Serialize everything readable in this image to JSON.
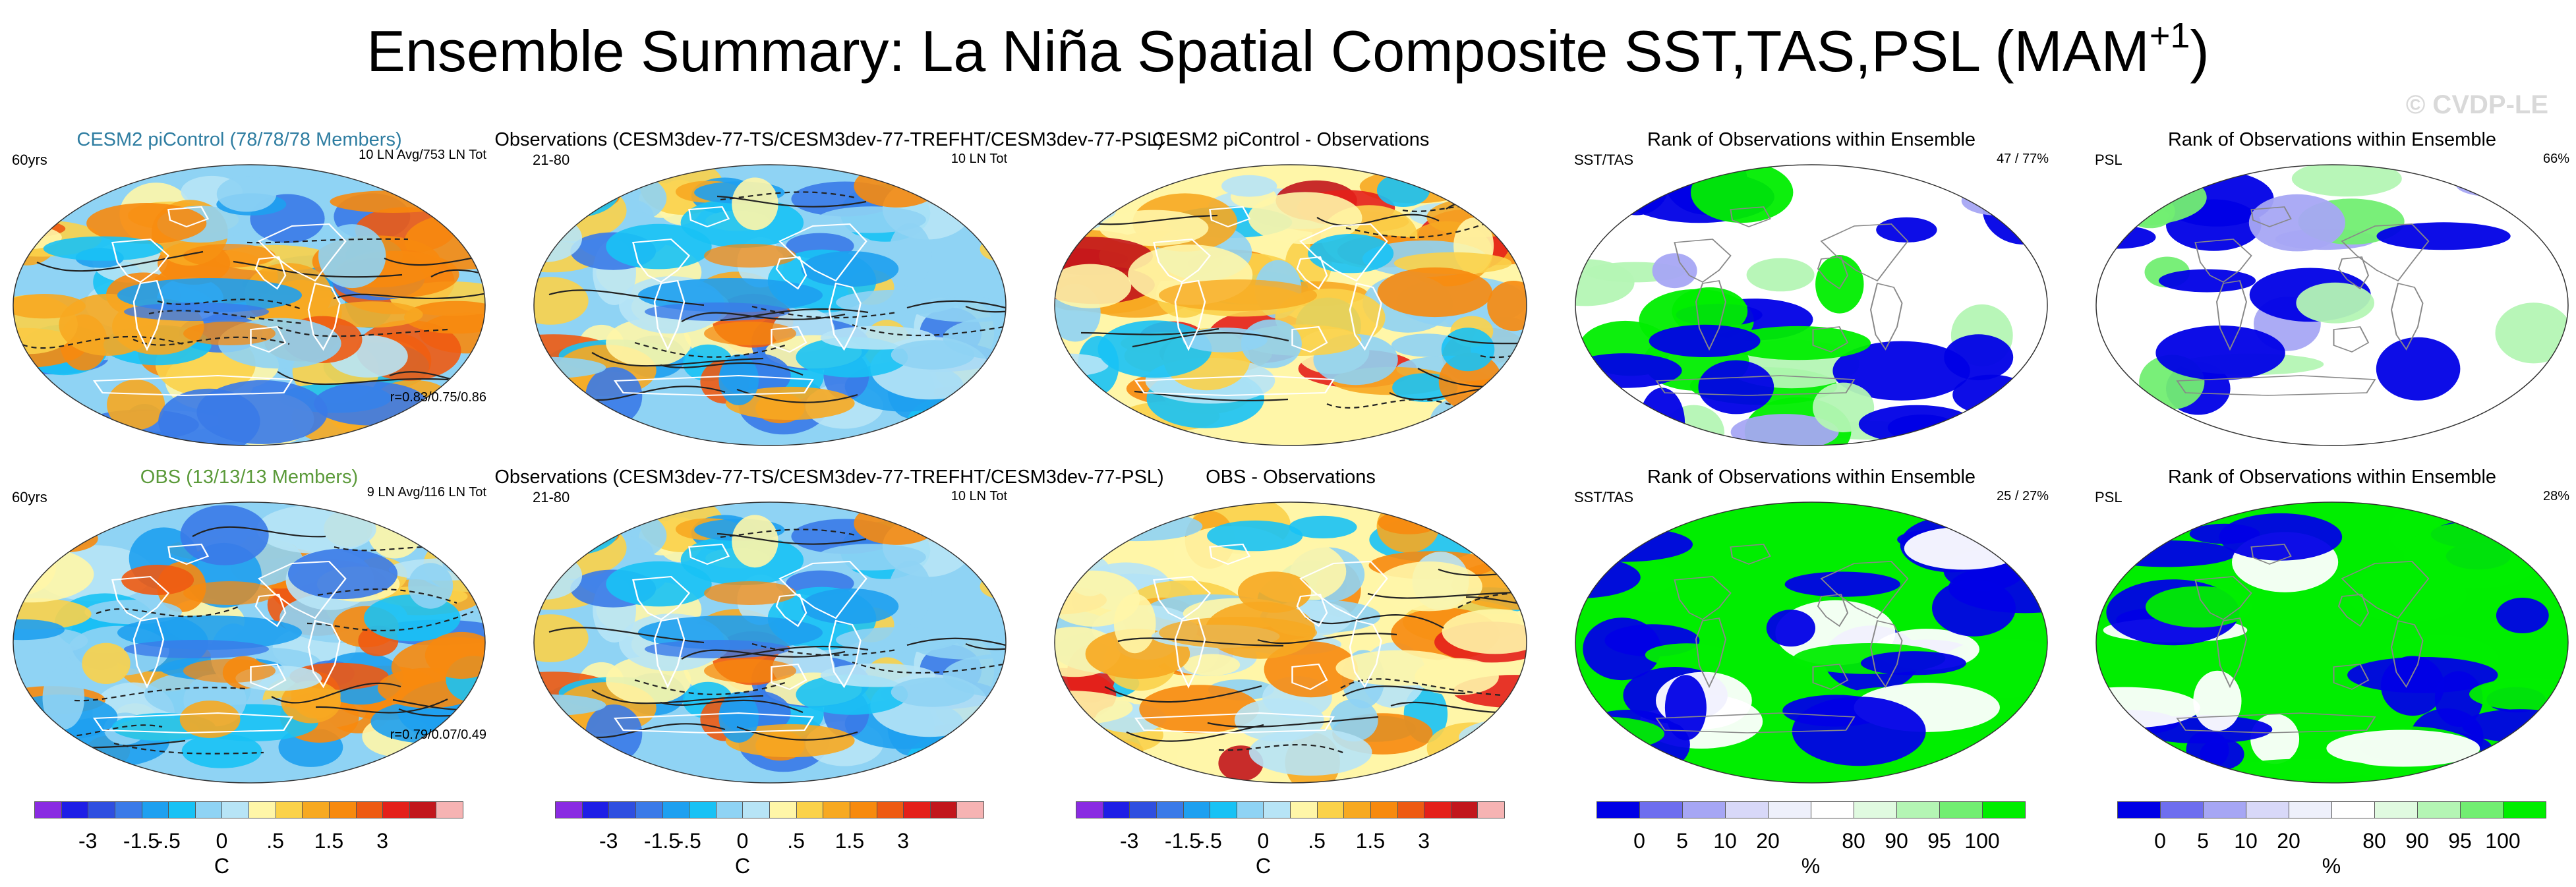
{
  "title": {
    "main": "Ensemble Summary: La Niña Spatial Composite SST,TAS,PSL (MAM",
    "sup": "+1",
    "close": ")"
  },
  "watermark": "© CVDP-LE",
  "colors": {
    "diverging": [
      "#8a2be2",
      "#1e1ee6",
      "#2f4fe0",
      "#3a7ae8",
      "#1ea0f0",
      "#18c2f5",
      "#8fd3f4",
      "#b7e4f6",
      "#fff6a8",
      "#fbd24a",
      "#f7a921",
      "#f78a0e",
      "#ee5a12",
      "#e4201a",
      "#c2161c",
      "#f6b3b3"
    ],
    "rank": [
      "#0000e6",
      "#6e6eef",
      "#a6a6f4",
      "#d8d8f8",
      "#eef0fb",
      "#ffffff",
      "#e0fae0",
      "#b4f5b4",
      "#72ee72",
      "#00ee00"
    ],
    "ocean_base": "#8fd3f4",
    "contour": "#222222"
  },
  "chart_data": {
    "type": "heatmap",
    "title": "Ensemble Summary: La Niña Spatial Composite SST,TAS,PSL (MAM+1)",
    "panels": [
      {
        "row": 0,
        "col": 0,
        "kind": "composite",
        "title": "CESM2 piControl (78/78/78 Members)",
        "title_color": "blue",
        "left_label": "60yrs",
        "right_label": "10 LN Avg/753 LN Tot",
        "bottom_label": "r=0.83/0.75/0.86",
        "seed": 11
      },
      {
        "row": 0,
        "col": 1,
        "kind": "composite",
        "title": "Observations (CESM3dev-77-TS/CESM3dev-77-TREFHT/CESM3dev-77-PSL)",
        "left_label": "21-80",
        "right_label": "10 LN Tot",
        "seed": 23
      },
      {
        "row": 0,
        "col": 2,
        "kind": "difference",
        "title": "CESM2 piControl - Observations",
        "seed": 37
      },
      {
        "row": 0,
        "col": 3,
        "kind": "rank",
        "title": "Rank of Observations within Ensemble",
        "left_label": "SST/TAS",
        "right_label": "47 /  77%",
        "seed": 41
      },
      {
        "row": 0,
        "col": 4,
        "kind": "rank_sparse",
        "title": "Rank of Observations within Ensemble",
        "left_label": "PSL",
        "right_label": "66%",
        "seed": 53
      },
      {
        "row": 1,
        "col": 0,
        "kind": "composite",
        "title": "OBS (13/13/13 Members)",
        "title_color": "green",
        "left_label": "60yrs",
        "right_label": "9 LN Avg/116 LN Tot",
        "bottom_label": "r=0.79/0.07/0.49",
        "seed": 61
      },
      {
        "row": 1,
        "col": 1,
        "kind": "composite",
        "title": "Observations (CESM3dev-77-TS/CESM3dev-77-TREFHT/CESM3dev-77-PSL)",
        "left_label": "21-80",
        "right_label": "10 LN Tot",
        "seed": 23
      },
      {
        "row": 1,
        "col": 2,
        "kind": "difference",
        "title": "OBS - Observations",
        "seed": 79
      },
      {
        "row": 1,
        "col": 3,
        "kind": "rank_dense",
        "title": "Rank of Observations within Ensemble",
        "left_label": "SST/TAS",
        "right_label": "25 /  27%",
        "seed": 83
      },
      {
        "row": 1,
        "col": 4,
        "kind": "rank_dense",
        "title": "Rank of Observations within Ensemble",
        "left_label": "PSL",
        "right_label": "28%",
        "seed": 97
      }
    ],
    "colorbars": [
      {
        "kind": "diverging",
        "unit": "C",
        "ticks": [
          "-3",
          "-1.5",
          "-.5",
          "0",
          ".5",
          "1.5",
          "3"
        ],
        "levels": [
          -4,
          -3,
          -2,
          -1.5,
          -1,
          -0.5,
          -0.25,
          0,
          0.25,
          0.5,
          1,
          1.5,
          2,
          3,
          4
        ]
      },
      {
        "kind": "diverging",
        "unit": "C",
        "ticks": [
          "-3",
          "-1.5",
          "-.5",
          "0",
          ".5",
          "1.5",
          "3"
        ],
        "levels": [
          -4,
          -3,
          -2,
          -1.5,
          -1,
          -0.5,
          -0.25,
          0,
          0.25,
          0.5,
          1,
          1.5,
          2,
          3,
          4
        ]
      },
      {
        "kind": "diverging",
        "unit": "C",
        "ticks": [
          "-3",
          "-1.5",
          "-.5",
          "0",
          ".5",
          "1.5",
          "3"
        ],
        "levels": [
          -4,
          -3,
          -2,
          -1.5,
          -1,
          -0.5,
          -0.25,
          0,
          0.25,
          0.5,
          1,
          1.5,
          2,
          3,
          4
        ]
      },
      {
        "kind": "rank",
        "unit": "%",
        "ticks": [
          "0",
          "5",
          "10",
          "20",
          "80",
          "90",
          "95",
          "100"
        ]
      },
      {
        "kind": "rank",
        "unit": "%",
        "ticks": [
          "0",
          "5",
          "10",
          "20",
          "80",
          "90",
          "95",
          "100"
        ]
      }
    ]
  }
}
